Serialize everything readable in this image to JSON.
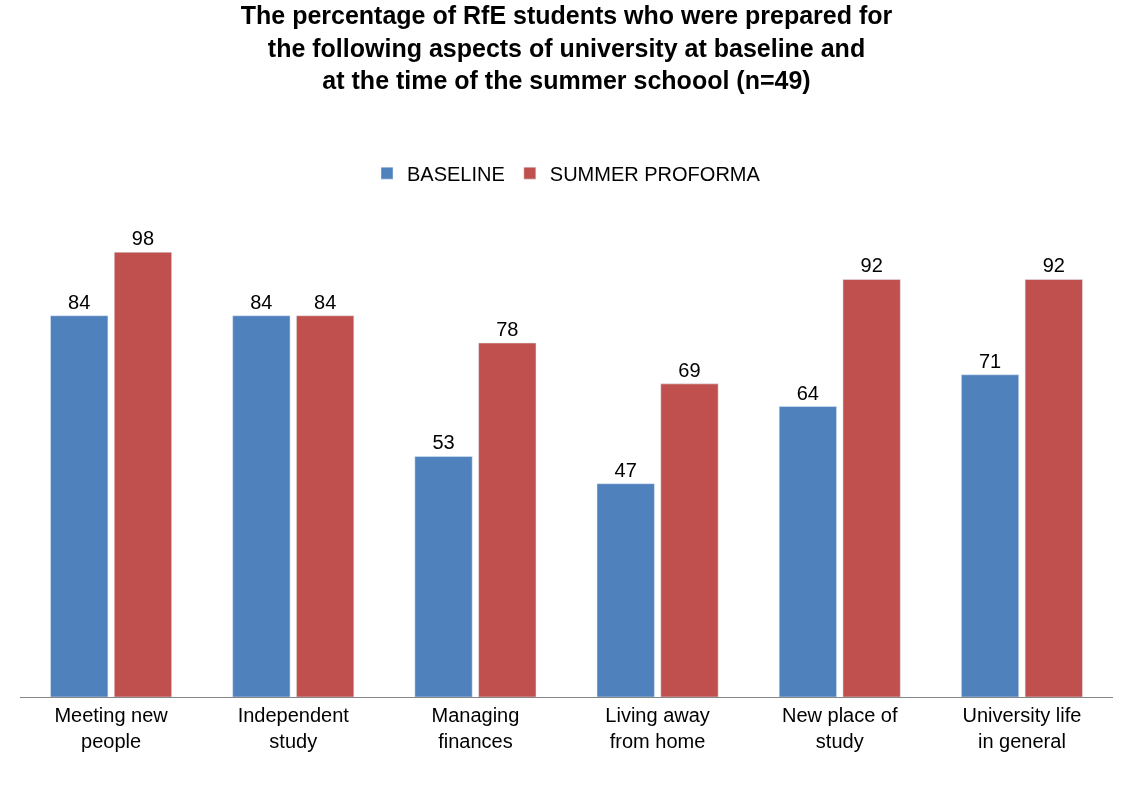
{
  "chart_data": {
    "type": "bar",
    "title": "The percentage of RfE students who were prepared for the following aspects of university at baseline and at the time of the summer schoool (n=49)",
    "categories": [
      "Meeting new people",
      "Independent study",
      "Managing finances",
      "Living away from home",
      "New place of study",
      "University life in general"
    ],
    "series": [
      {
        "name": "BASELINE",
        "color": "#4f81bd",
        "values": [
          84,
          84,
          53,
          47,
          64,
          71
        ]
      },
      {
        "name": "SUMMER PROFORMA",
        "color": "#c0504d",
        "values": [
          98,
          84,
          78,
          69,
          92,
          92
        ]
      }
    ],
    "data_labels": true,
    "legend": "top",
    "tick_labels": "x"
  }
}
